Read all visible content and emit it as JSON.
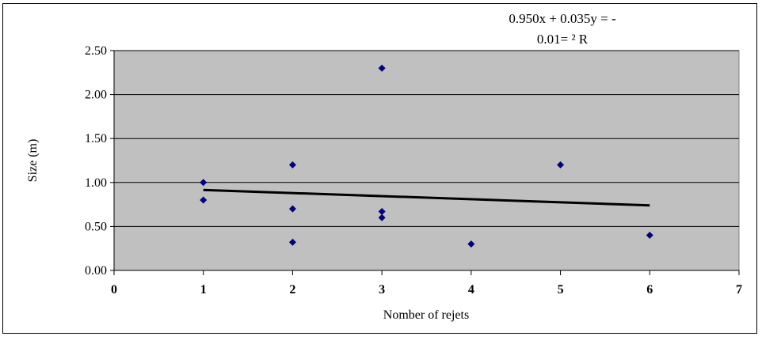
{
  "chart_data": {
    "type": "scatter",
    "xlabel": "Nomber of rejets",
    "ylabel": "Size (m)",
    "xlim": [
      0,
      7
    ],
    "ylim": [
      0,
      2.5
    ],
    "x_ticks": [
      "0",
      "1",
      "2",
      "3",
      "4",
      "5",
      "6",
      "7"
    ],
    "y_ticks": [
      "0.00",
      "0.50",
      "1.00",
      "1.50",
      "2.00",
      "2.50"
    ],
    "points": [
      {
        "x": 1,
        "y": 1.0
      },
      {
        "x": 1,
        "y": 0.8
      },
      {
        "x": 2,
        "y": 1.2
      },
      {
        "x": 2,
        "y": 0.7
      },
      {
        "x": 2,
        "y": 0.32
      },
      {
        "x": 3,
        "y": 2.3
      },
      {
        "x": 3,
        "y": 0.67
      },
      {
        "x": 3,
        "y": 0.6
      },
      {
        "x": 4,
        "y": 0.3
      },
      {
        "x": 5,
        "y": 1.2
      },
      {
        "x": 6,
        "y": 0.4
      }
    ],
    "trendline": {
      "x": [
        1,
        6
      ],
      "y": [
        0.915,
        0.74
      ]
    },
    "equation_line1": "0.950x + 0.035y = -",
    "equation_line2": "0.01= ² R",
    "grid": "horizontal",
    "colors": {
      "plot_bg": "#c0c0c0",
      "marker": "#000080",
      "trendline": "#000000"
    }
  }
}
